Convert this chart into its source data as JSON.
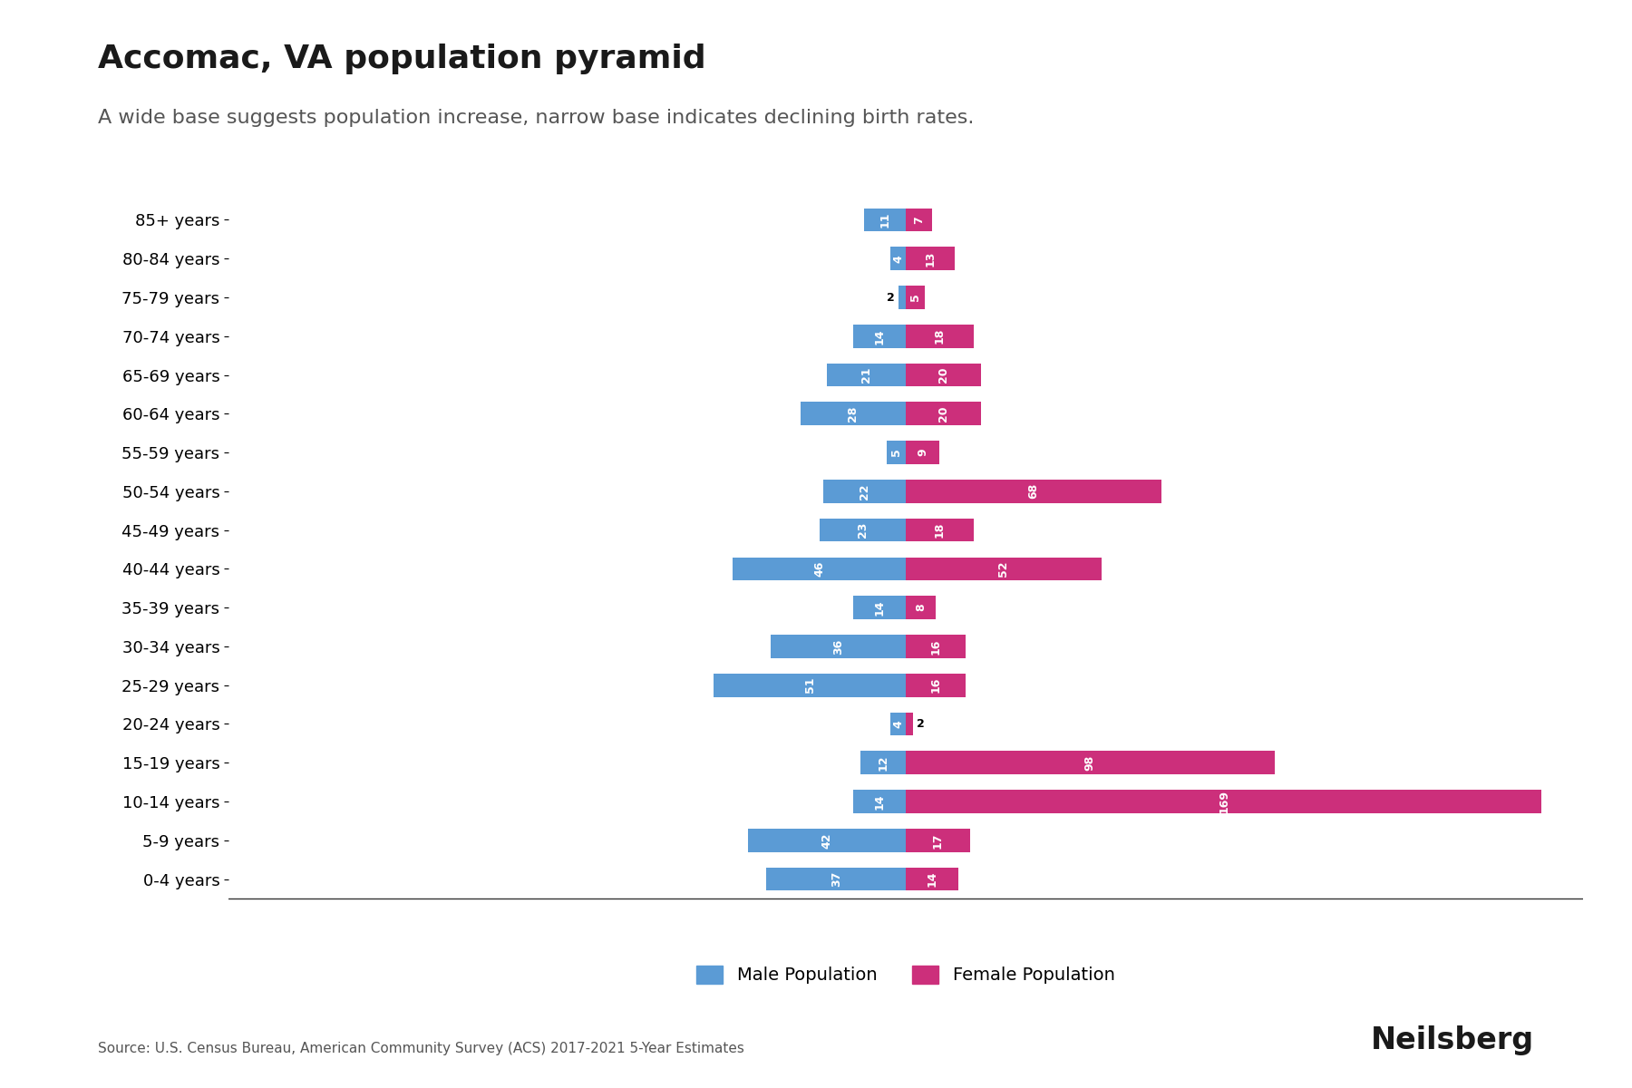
{
  "title": "Accomac, VA population pyramid",
  "subtitle": "A wide base suggests population increase, narrow base indicates declining birth rates.",
  "source": "Source: U.S. Census Bureau, American Community Survey (ACS) 2017-2021 5-Year Estimates",
  "branding": "Neilsberg",
  "age_groups": [
    "0-4 years",
    "5-9 years",
    "10-14 years",
    "15-19 years",
    "20-24 years",
    "25-29 years",
    "30-34 years",
    "35-39 years",
    "40-44 years",
    "45-49 years",
    "50-54 years",
    "55-59 years",
    "60-64 years",
    "65-69 years",
    "70-74 years",
    "75-79 years",
    "80-84 years",
    "85+ years"
  ],
  "male": [
    37,
    42,
    14,
    12,
    4,
    51,
    36,
    14,
    46,
    23,
    22,
    5,
    28,
    21,
    14,
    2,
    4,
    11
  ],
  "female": [
    14,
    17,
    169,
    98,
    2,
    16,
    16,
    8,
    52,
    18,
    68,
    9,
    20,
    20,
    18,
    5,
    13,
    7
  ],
  "male_color": "#5B9BD5",
  "female_color": "#CC2F7B",
  "background_color": "#FFFFFF",
  "title_fontsize": 26,
  "subtitle_fontsize": 16,
  "bar_label_fontsize": 9,
  "tick_fontsize": 13,
  "xlim": 180
}
